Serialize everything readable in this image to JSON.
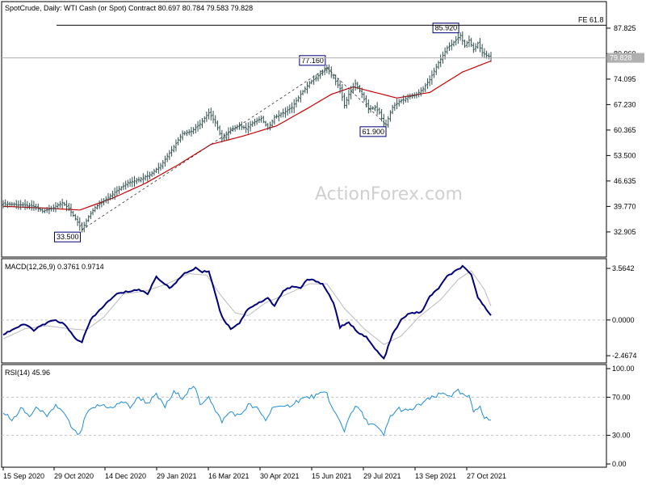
{
  "colors": {
    "ohlc": "#2f4f4f",
    "ma": "#cc0000",
    "macd": "#00007a",
    "signal": "#bbbbbb",
    "rsi": "#1f8dd6",
    "grid": "#c0c0c0",
    "frame": "#000000",
    "bg": "#ffffff",
    "price_tag": "#b0b0b0"
  },
  "chart_data": [
    {
      "type": "ohlc",
      "title": "SpotCrude, Daily:  WTI Cash (or Spot) Contract  80.697 80.784 79.583 79.828",
      "xlabel": "",
      "ylabel": "",
      "ylim": [
        27.0,
        91.5
      ],
      "y_ticks": [
        "87.825",
        "80.960",
        "74.095",
        "67.230",
        "60.365",
        "53.500",
        "46.635",
        "39.770",
        "32.905"
      ],
      "y_tick_values": [
        87.825,
        80.96,
        74.095,
        67.23,
        60.365,
        53.5,
        46.635,
        39.77,
        32.905
      ],
      "current_price": 79.828,
      "current_price_label": "79.828",
      "hline": {
        "value": 88.6,
        "label": "FE 61.8"
      },
      "last_price_line": 79.828,
      "watermark": "ActionForex.com",
      "x_dates": [
        "15 Sep 2020",
        "29 Oct 2020",
        "14 Dec 2020",
        "29 Jan 2021",
        "16 Mar 2021",
        "30 Apr 2021",
        "15 Jun 2021",
        "29 Jul 2021",
        "13 Sep 2021",
        "27 Oct 2021"
      ],
      "close_path": [
        [
          0,
          40.5
        ],
        [
          8,
          40.2
        ],
        [
          14,
          39.8
        ],
        [
          18,
          38.5
        ],
        [
          22,
          39.2
        ],
        [
          27,
          40.8
        ],
        [
          30,
          39.2
        ],
        [
          34,
          35.5
        ],
        [
          36,
          33.5
        ],
        [
          39,
          37.0
        ],
        [
          42,
          39.5
        ],
        [
          47,
          41.8
        ],
        [
          52,
          44.0
        ],
        [
          57,
          46.2
        ],
        [
          62,
          47.0
        ],
        [
          67,
          48.3
        ],
        [
          72,
          50.8
        ],
        [
          77,
          55.0
        ],
        [
          82,
          59.5
        ],
        [
          86,
          60.0
        ],
        [
          90,
          62.0
        ],
        [
          94,
          65.0
        ],
        [
          97,
          62.5
        ],
        [
          100,
          58.0
        ],
        [
          104,
          60.5
        ],
        [
          108,
          61.5
        ],
        [
          111,
          60.8
        ],
        [
          114,
          62.3
        ],
        [
          118,
          63.5
        ],
        [
          121,
          60.8
        ],
        [
          124,
          63.8
        ],
        [
          128,
          65.0
        ],
        [
          132,
          66.5
        ],
        [
          136,
          70.0
        ],
        [
          140,
          73.0
        ],
        [
          144,
          75.0
        ],
        [
          147,
          76.5
        ],
        [
          148,
          77.16
        ],
        [
          151,
          74.5
        ],
        [
          154,
          71.5
        ],
        [
          156,
          67.0
        ],
        [
          158,
          70.0
        ],
        [
          161,
          73.0
        ],
        [
          164,
          70.0
        ],
        [
          167,
          66.0
        ],
        [
          170,
          66.5
        ],
        [
          172,
          65.0
        ],
        [
          174,
          62.0
        ],
        [
          175,
          61.9
        ],
        [
          178,
          66.5
        ],
        [
          181,
          68.0
        ],
        [
          185,
          69.2
        ],
        [
          189,
          70.0
        ],
        [
          192,
          71.5
        ],
        [
          195,
          74.0
        ],
        [
          199,
          78.5
        ],
        [
          203,
          82.5
        ],
        [
          206,
          84.0
        ],
        [
          209,
          85.92
        ],
        [
          211,
          83.0
        ],
        [
          213,
          84.6
        ],
        [
          215,
          82.0
        ],
        [
          217,
          83.8
        ],
        [
          219,
          81.2
        ],
        [
          221,
          80.5
        ],
        [
          223,
          79.83
        ]
      ],
      "ma_path": [
        [
          0,
          39.8
        ],
        [
          20,
          39.3
        ],
        [
          35,
          38.8
        ],
        [
          50,
          42.0
        ],
        [
          65,
          46.0
        ],
        [
          80,
          51.0
        ],
        [
          95,
          56.5
        ],
        [
          110,
          58.8
        ],
        [
          125,
          61.5
        ],
        [
          140,
          66.5
        ],
        [
          150,
          70.0
        ],
        [
          160,
          72.0
        ],
        [
          170,
          70.5
        ],
        [
          180,
          69.0
        ],
        [
          195,
          70.5
        ],
        [
          210,
          76.0
        ],
        [
          223,
          79.0
        ]
      ],
      "labels": [
        {
          "text": "33.500",
          "x": 36,
          "y": 33.5
        },
        {
          "text": "77.160",
          "x": 148,
          "y": 77.16
        },
        {
          "text": "61.900",
          "x": 175,
          "y": 61.9
        },
        {
          "text": "85.920",
          "x": 209,
          "y": 85.92
        }
      ],
      "trendlines": [
        [
          [
            36,
            33.5
          ],
          [
            148,
            77.16
          ]
        ],
        [
          [
            148,
            77.16
          ],
          [
            175,
            61.9
          ]
        ]
      ]
    },
    {
      "type": "line",
      "title": "MACD(12,26,9) 0.3761 0.9714",
      "ylim": [
        -2.8,
        3.9
      ],
      "y_ticks": [
        "3.5642",
        "0.0000",
        "-2.4674"
      ],
      "y_tick_values": [
        3.5642,
        0.0,
        -2.4674
      ],
      "series": [
        {
          "values": [
            [
              0,
              -1.0
            ],
            [
              5,
              -0.6
            ],
            [
              10,
              -0.3
            ],
            [
              14,
              -0.7
            ],
            [
              20,
              -0.2
            ],
            [
              24,
              0.0
            ],
            [
              28,
              -0.3
            ],
            [
              33,
              -1.3
            ],
            [
              36,
              -1.5
            ],
            [
              40,
              0.0
            ],
            [
              46,
              1.0
            ],
            [
              52,
              1.8
            ],
            [
              58,
              2.0
            ],
            [
              62,
              2.1
            ],
            [
              66,
              1.8
            ],
            [
              70,
              3.0
            ],
            [
              76,
              2.2
            ],
            [
              83,
              3.2
            ],
            [
              88,
              3.6
            ],
            [
              91,
              3.3
            ],
            [
              94,
              3.4
            ],
            [
              97,
              1.8
            ],
            [
              100,
              0.2
            ],
            [
              104,
              -0.6
            ],
            [
              108,
              -0.2
            ],
            [
              112,
              0.8
            ],
            [
              117,
              1.2
            ],
            [
              121,
              1.5
            ],
            [
              124,
              1.0
            ],
            [
              128,
              2.0
            ],
            [
              132,
              2.3
            ],
            [
              136,
              2.2
            ],
            [
              139,
              2.8
            ],
            [
              143,
              2.7
            ],
            [
              146,
              2.5
            ],
            [
              151,
              1.2
            ],
            [
              154,
              -0.5
            ],
            [
              158,
              -0.2
            ],
            [
              162,
              -0.8
            ],
            [
              166,
              -1.2
            ],
            [
              170,
              -2.0
            ],
            [
              174,
              -2.7
            ],
            [
              178,
              -1.0
            ],
            [
              182,
              0.0
            ],
            [
              186,
              0.5
            ],
            [
              191,
              0.5
            ],
            [
              195,
              1.6
            ],
            [
              199,
              2.2
            ],
            [
              203,
              3.0
            ],
            [
              207,
              3.4
            ],
            [
              210,
              3.7
            ],
            [
              214,
              3.1
            ],
            [
              217,
              1.6
            ],
            [
              220,
              0.9
            ],
            [
              223,
              0.38
            ]
          ]
        },
        {
          "values": [
            [
              0,
              -1.3
            ],
            [
              10,
              -0.6
            ],
            [
              20,
              -0.4
            ],
            [
              30,
              -0.6
            ],
            [
              38,
              -0.7
            ],
            [
              46,
              0.2
            ],
            [
              55,
              1.8
            ],
            [
              65,
              2.0
            ],
            [
              75,
              2.5
            ],
            [
              85,
              3.2
            ],
            [
              93,
              3.1
            ],
            [
              100,
              1.6
            ],
            [
              106,
              0.5
            ],
            [
              112,
              0.3
            ],
            [
              120,
              1.2
            ],
            [
              130,
              1.8
            ],
            [
              140,
              2.5
            ],
            [
              148,
              2.5
            ],
            [
              156,
              0.8
            ],
            [
              165,
              -0.6
            ],
            [
              174,
              -1.7
            ],
            [
              182,
              -1.1
            ],
            [
              190,
              0.2
            ],
            [
              200,
              1.4
            ],
            [
              208,
              2.8
            ],
            [
              214,
              3.4
            ],
            [
              220,
              2.1
            ],
            [
              223,
              0.97
            ]
          ]
        }
      ]
    },
    {
      "type": "line",
      "title": "RSI(14) 45.96",
      "ylim": [
        0,
        100
      ],
      "y_ticks": [
        "100.00",
        "70.00",
        "30.00",
        "0.00"
      ],
      "y_tick_values": [
        100,
        70,
        30,
        0
      ],
      "series": [
        {
          "values": [
            [
              0,
              55
            ],
            [
              4,
              45
            ],
            [
              8,
              58
            ],
            [
              12,
              50
            ],
            [
              16,
              60
            ],
            [
              20,
              48
            ],
            [
              24,
              62
            ],
            [
              28,
              52
            ],
            [
              32,
              35
            ],
            [
              35,
              30
            ],
            [
              38,
              52
            ],
            [
              42,
              60
            ],
            [
              46,
              62
            ],
            [
              50,
              58
            ],
            [
              54,
              66
            ],
            [
              58,
              60
            ],
            [
              62,
              70
            ],
            [
              66,
              64
            ],
            [
              70,
              72
            ],
            [
              74,
              60
            ],
            [
              78,
              75
            ],
            [
              82,
              70
            ],
            [
              86,
              80
            ],
            [
              88,
              78
            ],
            [
              90,
              62
            ],
            [
              94,
              72
            ],
            [
              97,
              55
            ],
            [
              100,
              45
            ],
            [
              104,
              55
            ],
            [
              108,
              50
            ],
            [
              112,
              62
            ],
            [
              116,
              58
            ],
            [
              120,
              46
            ],
            [
              124,
              62
            ],
            [
              128,
              58
            ],
            [
              132,
              63
            ],
            [
              136,
              68
            ],
            [
              140,
              70
            ],
            [
              144,
              72
            ],
            [
              148,
              75
            ],
            [
              150,
              60
            ],
            [
              153,
              48
            ],
            [
              156,
              35
            ],
            [
              159,
              55
            ],
            [
              162,
              60
            ],
            [
              166,
              45
            ],
            [
              170,
              40
            ],
            [
              174,
              30
            ],
            [
              177,
              50
            ],
            [
              181,
              58
            ],
            [
              185,
              55
            ],
            [
              189,
              60
            ],
            [
              193,
              66
            ],
            [
              197,
              70
            ],
            [
              201,
              74
            ],
            [
              205,
              72
            ],
            [
              208,
              76
            ],
            [
              210,
              72
            ],
            [
              213,
              70
            ],
            [
              215,
              55
            ],
            [
              218,
              62
            ],
            [
              220,
              48
            ],
            [
              223,
              46
            ]
          ]
        }
      ]
    }
  ]
}
